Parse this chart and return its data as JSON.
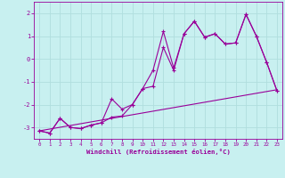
{
  "xlabel": "Windchill (Refroidissement éolien,°C)",
  "bg_color": "#c8f0f0",
  "line_color": "#990099",
  "grid_color": "#b0dede",
  "xlim": [
    -0.5,
    23.5
  ],
  "ylim": [
    -3.5,
    2.5
  ],
  "yticks": [
    -3,
    -2,
    -1,
    0,
    1,
    2
  ],
  "xticks": [
    0,
    1,
    2,
    3,
    4,
    5,
    6,
    7,
    8,
    9,
    10,
    11,
    12,
    13,
    14,
    15,
    16,
    17,
    18,
    19,
    20,
    21,
    22,
    23
  ],
  "line1_x": [
    0,
    1,
    2,
    3,
    4,
    5,
    6,
    7,
    8,
    9,
    10,
    11,
    12,
    13,
    14,
    15,
    16,
    17,
    18,
    19,
    20,
    21,
    22,
    23
  ],
  "line1_y": [
    -3.15,
    -3.25,
    -2.6,
    -3.0,
    -3.05,
    -2.9,
    -2.8,
    -1.75,
    -2.2,
    -2.0,
    -1.3,
    -1.2,
    0.5,
    -0.5,
    1.1,
    1.65,
    0.95,
    1.1,
    0.65,
    0.7,
    1.95,
    1.0,
    -0.15,
    -1.4
  ],
  "line2_x": [
    0,
    1,
    2,
    3,
    4,
    5,
    6,
    7,
    8,
    9,
    10,
    11,
    12,
    13,
    14,
    15,
    16,
    17,
    18,
    19,
    20,
    21,
    22,
    23
  ],
  "line2_y": [
    -3.15,
    -3.25,
    -2.6,
    -3.0,
    -3.05,
    -2.9,
    -2.8,
    -2.55,
    -2.5,
    -2.0,
    -1.3,
    -0.5,
    1.2,
    -0.4,
    1.1,
    1.65,
    0.95,
    1.1,
    0.65,
    0.7,
    1.95,
    1.0,
    -0.15,
    -1.4
  ],
  "line3_x": [
    0,
    23
  ],
  "line3_y": [
    -3.15,
    -1.35
  ]
}
